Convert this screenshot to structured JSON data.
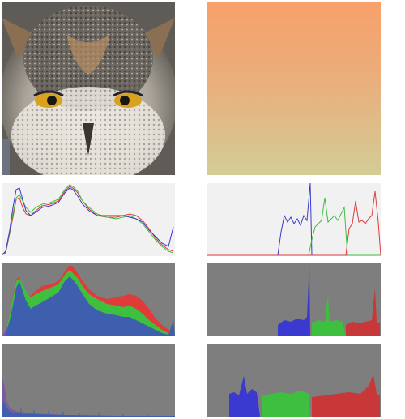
{
  "panels": {
    "owl_photo": {
      "icon": "owl-photo"
    },
    "gradient_photo": {
      "icon": "gradient-swatch",
      "top_color": "#f7a06a",
      "bottom_color": "#d3cc96"
    },
    "histograms": [
      {
        "id": "hist-owl-line",
        "style": "line-overlay"
      },
      {
        "id": "hist-grad-line",
        "style": "line-overlay"
      },
      {
        "id": "hist-owl-stack",
        "style": "filled-stacked"
      },
      {
        "id": "hist-grad-stack",
        "style": "filled-stacked"
      },
      {
        "id": "hist-owl-log",
        "style": "filled-flat"
      },
      {
        "id": "hist-grad-log",
        "style": "filled-flat"
      }
    ]
  },
  "colors": {
    "red": "#e03a3a",
    "green": "#3fbf3f",
    "blue": "#3a3ad0",
    "panel_light": "#f1f1f1",
    "panel_dark": "#7e7e7e"
  }
}
